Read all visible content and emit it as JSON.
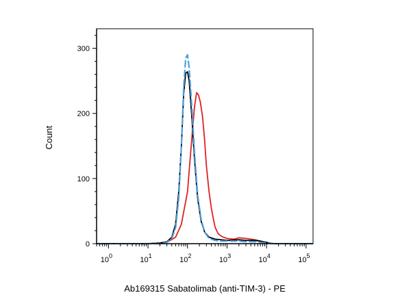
{
  "chart_data": {
    "type": "line",
    "title": "",
    "xlabel": "Ab169315 Sabatolimab (anti-TIM-3) - PE",
    "ylabel": "Count",
    "xscale": "log",
    "xlim": [
      0.5,
      150000
    ],
    "ylim": [
      0,
      330
    ],
    "grid": false,
    "legend": "none",
    "x_ticks": [
      {
        "base": "10",
        "exp": "0",
        "value": 1
      },
      {
        "base": "10",
        "exp": "1",
        "value": 10
      },
      {
        "base": "10",
        "exp": "2",
        "value": 100
      },
      {
        "base": "10",
        "exp": "3",
        "value": 1000
      },
      {
        "base": "10",
        "exp": "4",
        "value": 10000
      },
      {
        "base": "10",
        "exp": "5",
        "value": 100000
      }
    ],
    "y_ticks": [
      {
        "label": "0",
        "value": 0
      },
      {
        "label": "100",
        "value": 100
      },
      {
        "label": "200",
        "value": 200
      },
      {
        "label": "300",
        "value": 300
      }
    ],
    "series": [
      {
        "color": "#e02020",
        "style": "solid",
        "x": [
          0.5,
          10,
          20,
          30,
          50,
          70,
          100,
          120,
          150,
          170,
          190,
          210,
          240,
          270,
          300,
          350,
          400,
          450,
          500,
          600,
          700,
          800,
          1000,
          1500,
          2000,
          3000,
          4000,
          5000,
          6000,
          8000,
          10000,
          15000,
          30000,
          100000,
          150000
        ],
        "values": [
          0,
          0,
          1,
          2,
          10,
          30,
          80,
          140,
          210,
          232,
          228,
          218,
          195,
          160,
          120,
          80,
          55,
          38,
          25,
          15,
          12,
          10,
          8,
          7,
          9,
          8,
          7,
          6,
          5,
          2,
          1,
          0,
          0,
          0,
          0
        ]
      },
      {
        "color": "#000000",
        "style": "solid",
        "x": [
          0.5,
          10,
          20,
          30,
          40,
          50,
          60,
          70,
          80,
          90,
          100,
          110,
          130,
          150,
          180,
          220,
          270,
          350,
          500,
          700,
          1000,
          2000,
          3000,
          5000,
          7000,
          10000,
          15000,
          30000,
          100000,
          150000
        ],
        "values": [
          0,
          0,
          1,
          3,
          10,
          30,
          80,
          150,
          230,
          262,
          264,
          250,
          190,
          130,
          70,
          35,
          18,
          10,
          7,
          6,
          5,
          6,
          5,
          5,
          4,
          2,
          0,
          0,
          0,
          0
        ]
      },
      {
        "color": "#4a9fe0",
        "style": "dashed",
        "x": [
          0.5,
          10,
          20,
          30,
          40,
          50,
          60,
          70,
          80,
          90,
          100,
          110,
          130,
          150,
          180,
          220,
          270,
          350,
          500,
          700,
          1000,
          2000,
          3000,
          5000,
          7000,
          10000,
          15000,
          30000,
          100000,
          150000
        ],
        "values": [
          0,
          0,
          0,
          2,
          8,
          25,
          70,
          150,
          240,
          285,
          290,
          270,
          205,
          140,
          75,
          38,
          18,
          8,
          5,
          4,
          4,
          4,
          3,
          3,
          2,
          1,
          0,
          0,
          0,
          0
        ]
      }
    ]
  }
}
